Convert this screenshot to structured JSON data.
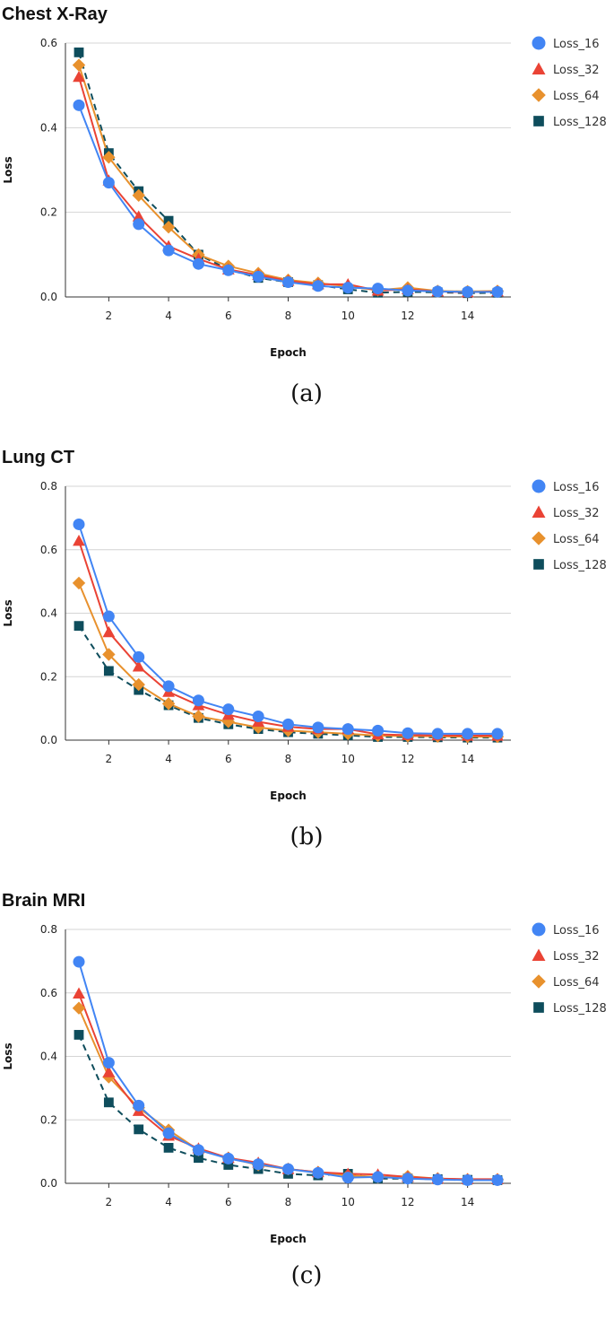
{
  "chart_data": [
    {
      "type": "line",
      "title": "Chest X-Ray",
      "caption": "(a)",
      "xlabel": "Epoch",
      "ylabel": "Loss",
      "xlim": [
        0.55,
        15.45
      ],
      "ylim": [
        0,
        0.6
      ],
      "xticks": [
        2,
        4,
        6,
        8,
        10,
        12,
        14
      ],
      "yticks": [
        0.0,
        0.2,
        0.4,
        0.6
      ],
      "ytick_labels": [
        "0.0",
        "0.2",
        "0.4",
        "0.6"
      ],
      "grid": true,
      "legend_position": "right",
      "x": [
        1,
        2,
        3,
        4,
        5,
        6,
        7,
        8,
        9,
        10,
        11,
        12,
        13,
        14,
        15
      ],
      "series": [
        {
          "name": "Loss_16",
          "color": "#4285F4",
          "marker": "circle",
          "dash": false,
          "values": [
            0.453,
            0.27,
            0.172,
            0.11,
            0.078,
            0.063,
            0.048,
            0.035,
            0.026,
            0.022,
            0.02,
            0.015,
            0.013,
            0.012,
            0.012
          ]
        },
        {
          "name": "Loss_32",
          "color": "#EA4335",
          "marker": "triangle",
          "dash": false,
          "values": [
            0.52,
            0.275,
            0.19,
            0.12,
            0.09,
            0.065,
            0.052,
            0.038,
            0.03,
            0.03,
            0.015,
            0.018,
            0.013,
            0.011,
            0.013
          ]
        },
        {
          "name": "Loss_64",
          "color": "#E8912D",
          "marker": "diamond",
          "dash": false,
          "values": [
            0.548,
            0.33,
            0.24,
            0.165,
            0.1,
            0.073,
            0.056,
            0.04,
            0.033,
            0.025,
            0.016,
            0.022,
            0.014,
            0.013,
            0.014
          ]
        },
        {
          "name": "Loss_128",
          "color": "#0E4D5C",
          "marker": "square",
          "dash": true,
          "values": [
            0.578,
            0.34,
            0.25,
            0.18,
            0.1,
            0.065,
            0.045,
            0.035,
            0.028,
            0.018,
            0.01,
            0.012,
            0.011,
            0.009,
            0.01
          ]
        }
      ]
    },
    {
      "type": "line",
      "title": "Lung CT",
      "caption": "(b)",
      "xlabel": "Epoch",
      "ylabel": "Loss",
      "xlim": [
        0.55,
        15.45
      ],
      "ylim": [
        0,
        0.8
      ],
      "xticks": [
        2,
        4,
        6,
        8,
        10,
        12,
        14
      ],
      "yticks": [
        0.0,
        0.2,
        0.4,
        0.6,
        0.8
      ],
      "ytick_labels": [
        "0.0",
        "0.2",
        "0.4",
        "0.6",
        "0.8"
      ],
      "grid": true,
      "legend_position": "right",
      "x": [
        1,
        2,
        3,
        4,
        5,
        6,
        7,
        8,
        9,
        10,
        11,
        12,
        13,
        14,
        15
      ],
      "series": [
        {
          "name": "Loss_16",
          "color": "#4285F4",
          "marker": "circle",
          "dash": false,
          "values": [
            0.68,
            0.39,
            0.262,
            0.17,
            0.125,
            0.097,
            0.075,
            0.05,
            0.04,
            0.035,
            0.03,
            0.022,
            0.02,
            0.02,
            0.02
          ]
        },
        {
          "name": "Loss_32",
          "color": "#EA4335",
          "marker": "triangle",
          "dash": false,
          "values": [
            0.628,
            0.34,
            0.232,
            0.152,
            0.11,
            0.08,
            0.058,
            0.042,
            0.035,
            0.035,
            0.018,
            0.016,
            0.015,
            0.014,
            0.014
          ]
        },
        {
          "name": "Loss_64",
          "color": "#E8912D",
          "marker": "diamond",
          "dash": false,
          "values": [
            0.495,
            0.27,
            0.175,
            0.115,
            0.075,
            0.058,
            0.04,
            0.03,
            0.025,
            0.02,
            0.014,
            0.013,
            0.012,
            0.011,
            0.011
          ]
        },
        {
          "name": "Loss_128",
          "color": "#0E4D5C",
          "marker": "square",
          "dash": true,
          "values": [
            0.36,
            0.218,
            0.158,
            0.11,
            0.07,
            0.05,
            0.035,
            0.025,
            0.02,
            0.015,
            0.01,
            0.01,
            0.009,
            0.008,
            0.008
          ]
        }
      ]
    },
    {
      "type": "line",
      "title": "Brain MRI",
      "caption": "(c)",
      "xlabel": "Epoch",
      "ylabel": "Loss",
      "xlim": [
        0.55,
        15.45
      ],
      "ylim": [
        0,
        0.8
      ],
      "xticks": [
        2,
        4,
        6,
        8,
        10,
        12,
        14
      ],
      "yticks": [
        0.0,
        0.2,
        0.4,
        0.6,
        0.8
      ],
      "ytick_labels": [
        "0.0",
        "0.2",
        "0.4",
        "0.6",
        "0.8"
      ],
      "grid": true,
      "legend_position": "right",
      "x": [
        1,
        2,
        3,
        4,
        5,
        6,
        7,
        8,
        9,
        10,
        11,
        12,
        13,
        14,
        15
      ],
      "series": [
        {
          "name": "Loss_16",
          "color": "#4285F4",
          "marker": "circle",
          "dash": false,
          "values": [
            0.698,
            0.38,
            0.245,
            0.158,
            0.105,
            0.078,
            0.06,
            0.045,
            0.033,
            0.018,
            0.02,
            0.015,
            0.012,
            0.01,
            0.01
          ]
        },
        {
          "name": "Loss_32",
          "color": "#EA4335",
          "marker": "triangle",
          "dash": false,
          "values": [
            0.598,
            0.35,
            0.228,
            0.15,
            0.11,
            0.08,
            0.065,
            0.045,
            0.035,
            0.03,
            0.028,
            0.02,
            0.015,
            0.013,
            0.013
          ]
        },
        {
          "name": "Loss_64",
          "color": "#E8912D",
          "marker": "diamond",
          "dash": false,
          "values": [
            0.552,
            0.335,
            0.238,
            0.168,
            0.105,
            0.08,
            0.058,
            0.045,
            0.035,
            0.025,
            0.02,
            0.022,
            0.015,
            0.012,
            0.012
          ]
        },
        {
          "name": "Loss_128",
          "color": "#0E4D5C",
          "marker": "square",
          "dash": true,
          "values": [
            0.468,
            0.255,
            0.17,
            0.112,
            0.08,
            0.058,
            0.045,
            0.03,
            0.025,
            0.03,
            0.015,
            0.015,
            0.013,
            0.011,
            0.01
          ]
        }
      ]
    }
  ]
}
